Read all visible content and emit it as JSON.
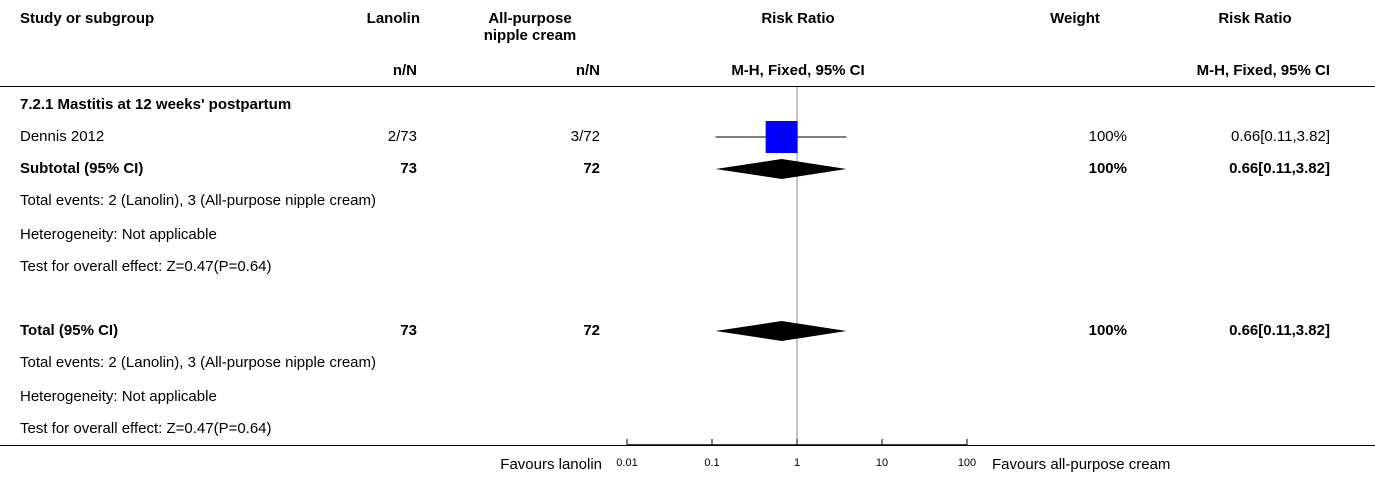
{
  "header": {
    "study": "Study or subgroup",
    "group1": "Lanolin",
    "group2_line1": "All-purpose",
    "group2_line2": "nipple cream",
    "effect": "Risk Ratio",
    "weight": "Weight",
    "effect2": "Risk Ratio",
    "nN1": "n/N",
    "nN2": "n/N",
    "method": "M-H, Fixed, 95% CI",
    "method2": "M-H, Fixed, 95% CI"
  },
  "subgroup": {
    "title": "7.2.1 Mastitis at 12 weeks' postpartum",
    "study": {
      "name": "Dennis 2012",
      "g1": "2/73",
      "g2": "3/72",
      "weight": "100%",
      "ci": "0.66[0.11,3.82]"
    },
    "subtotal": {
      "label": "Subtotal (95% CI)",
      "g1": "73",
      "g2": "72",
      "weight": "100%",
      "ci": "0.66[0.11,3.82]"
    },
    "events": "Total events: 2 (Lanolin), 3 (All-purpose nipple cream)",
    "heterogeneity": "Heterogeneity: Not applicable",
    "overall": "Test for overall effect: Z=0.47(P=0.64)"
  },
  "total": {
    "label": "Total (95% CI)",
    "g1": "73",
    "g2": "72",
    "weight": "100%",
    "ci": "0.66[0.11,3.82]",
    "events": "Total events: 2 (Lanolin), 3 (All-purpose nipple cream)",
    "heterogeneity": "Heterogeneity: Not applicable",
    "overall": "Test for overall effect: Z=0.47(P=0.64)"
  },
  "footer": {
    "favours_left": "Favours lanolin",
    "favours_right": "Favours all-purpose cream"
  },
  "chart_data": {
    "type": "forest",
    "scale": "log",
    "xlim": [
      0.01,
      100
    ],
    "ticks": [
      "0.01",
      "0.1",
      "1",
      "10",
      "100"
    ],
    "tick_values": [
      0.01,
      0.1,
      1,
      10,
      100
    ],
    "null_line": 1,
    "square_color": "#0000ff",
    "diamond_color": "#000000",
    "studies": [
      {
        "name": "Dennis 2012",
        "estimate": 0.66,
        "lower": 0.11,
        "upper": 3.82,
        "weight": 100
      }
    ],
    "pooled": [
      {
        "name": "Subtotal (95% CI)",
        "estimate": 0.66,
        "lower": 0.11,
        "upper": 3.82
      },
      {
        "name": "Total (95% CI)",
        "estimate": 0.66,
        "lower": 0.11,
        "upper": 3.82
      }
    ]
  }
}
